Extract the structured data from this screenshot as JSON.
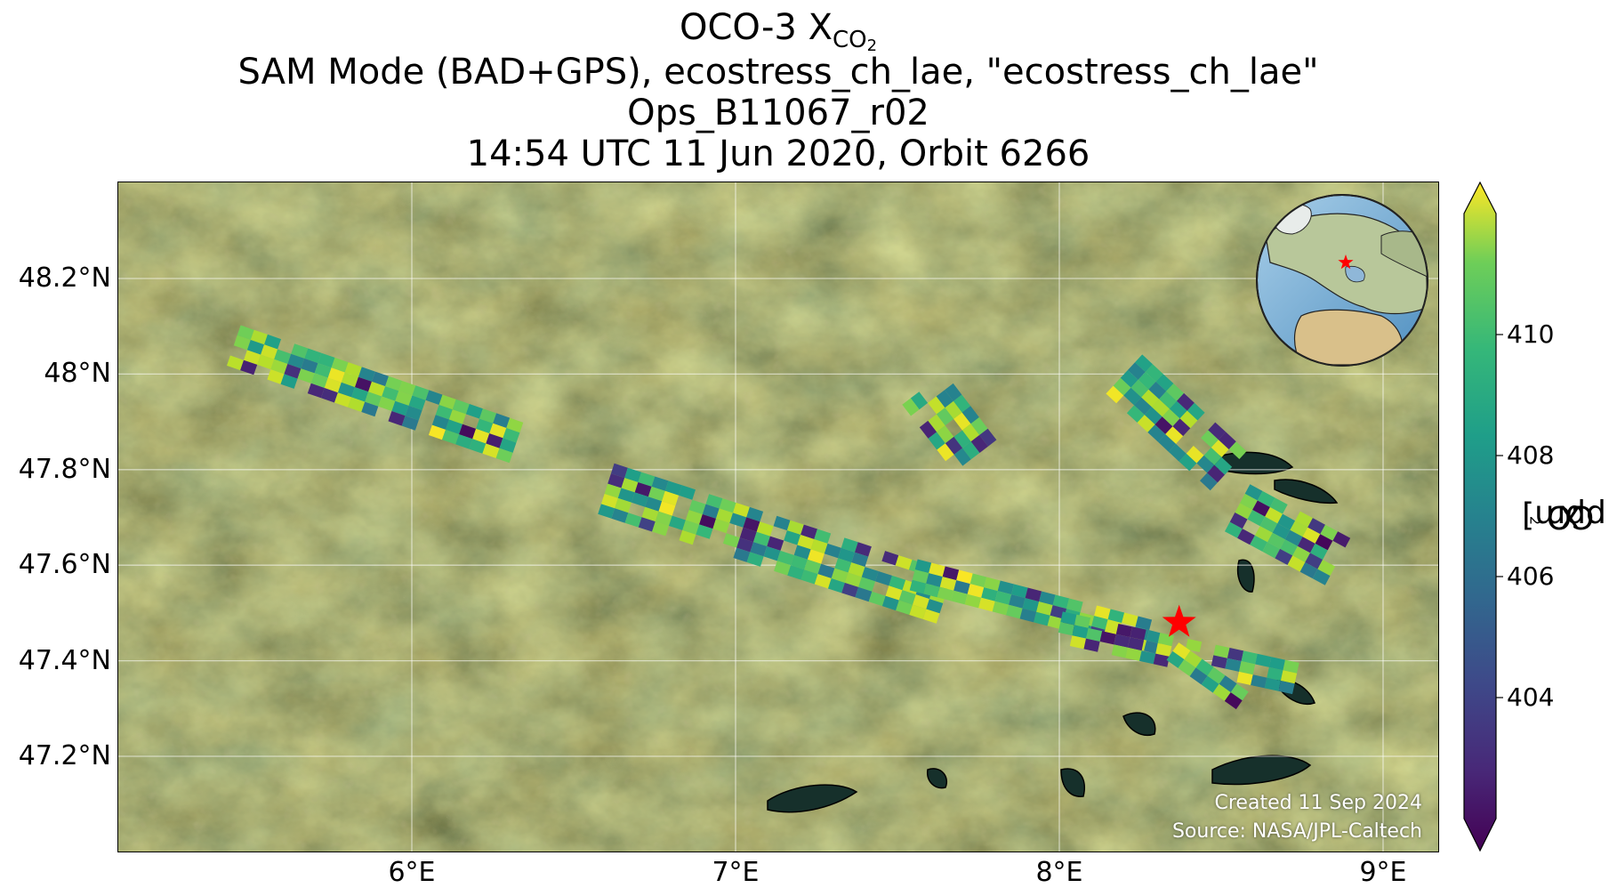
{
  "title": {
    "line1_main": "OCO-3 X",
    "line1_sub": "CO",
    "line1_sub2": "2",
    "line2": "SAM Mode (BAD+GPS), ecostress_ch_lae, \"ecostress_ch_lae\"",
    "line3": "Ops_B11067_r02",
    "line4": "14:54 UTC 11 Jun 2020, Orbit 6266"
  },
  "axes": {
    "x_ticks": [
      "6°E",
      "7°E",
      "8°E",
      "9°E"
    ],
    "x_values": [
      6,
      7,
      8,
      9
    ],
    "y_ticks": [
      "48.2°N",
      "48°N",
      "47.8°N",
      "47.6°N",
      "47.4°N",
      "47.2°N"
    ],
    "y_values": [
      48.2,
      48.0,
      47.8,
      47.6,
      47.4,
      47.2
    ],
    "lon_range": [
      5.1,
      9.2
    ],
    "lat_range": [
      47.0,
      48.4
    ],
    "grid": true
  },
  "colorbar": {
    "label_main": "X",
    "label_sub": "CO",
    "label_sub2": "2",
    "label_unit": " [ppm]",
    "ticks": [
      "404",
      "406",
      "408",
      "410"
    ],
    "tick_values": [
      404,
      406,
      408,
      410
    ],
    "range": [
      402,
      412
    ],
    "colormap": "viridis",
    "extend": "both"
  },
  "credits": {
    "created": "Created 11 Sep 2024",
    "source": "Source: NASA/JPL-Caltech"
  },
  "target": {
    "lon": 8.37,
    "lat": 47.48,
    "marker": "red-star"
  },
  "colors": {
    "target": "#ff0000",
    "grid": "#ffffff",
    "lakes": "#16302b"
  },
  "chart_data": {
    "type": "heatmap",
    "swaths": [
      {
        "name_hint": "A",
        "lon_start": 5.45,
        "lat_start": 48.06,
        "lon_end": 6.35,
        "lat_end": 47.85,
        "width": 0.09
      },
      {
        "name_hint": "B",
        "lon_start": 6.6,
        "lat_start": 47.76,
        "lon_end": 7.65,
        "lat_end": 47.53,
        "width": 0.12
      },
      {
        "name_hint": "C",
        "lon_start": 7.55,
        "lat_start": 47.58,
        "lon_end": 8.35,
        "lat_end": 47.44,
        "width": 0.07
      },
      {
        "name_hint": "D",
        "lon_start": 8.0,
        "lat_start": 47.47,
        "lon_end": 8.75,
        "lat_end": 47.36,
        "width": 0.08
      },
      {
        "name_hint": "E",
        "lon_start": 8.35,
        "lat_start": 47.42,
        "lon_end": 8.6,
        "lat_end": 47.3,
        "width": 0.06
      },
      {
        "name_hint": "F",
        "lon_start": 7.58,
        "lat_start": 47.97,
        "lon_end": 7.75,
        "lat_end": 47.82,
        "width": 0.12
      },
      {
        "name_hint": "G",
        "lon_start": 8.55,
        "lat_start": 47.72,
        "lon_end": 8.88,
        "lat_end": 47.6,
        "width": 0.12
      },
      {
        "name_hint": "H",
        "lon_start": 8.2,
        "lat_start": 48.0,
        "lon_end": 8.55,
        "lat_end": 47.78,
        "width": 0.12
      }
    ],
    "xco2_range_ppm": [
      402,
      412
    ]
  }
}
